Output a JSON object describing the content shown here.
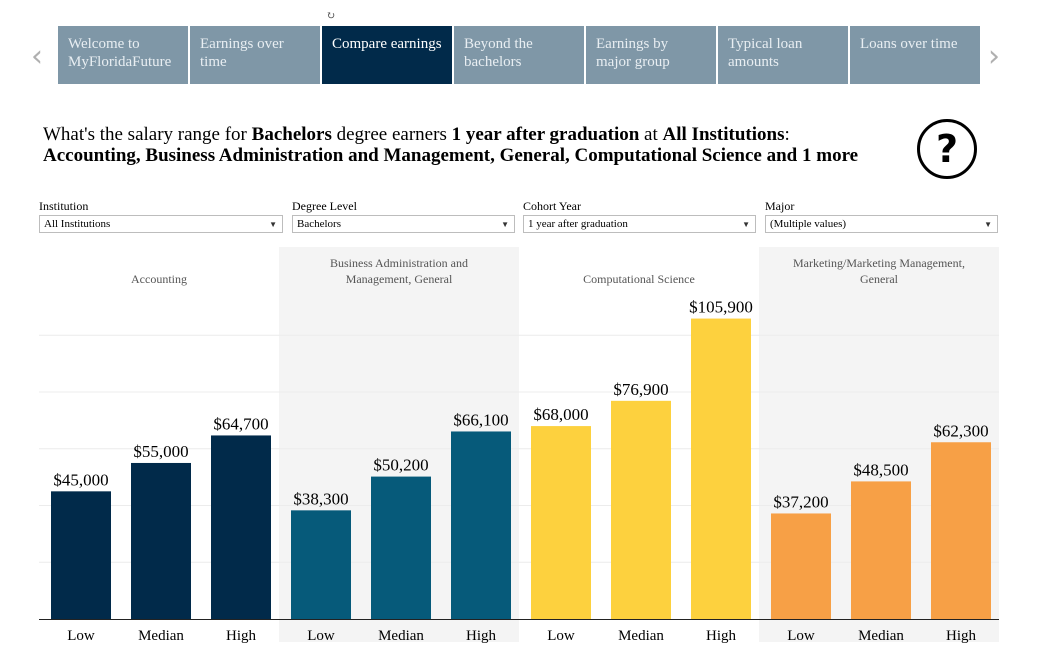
{
  "tabs": [
    {
      "label": "Welcome to MyFloridaFuture",
      "active": false
    },
    {
      "label": "Earnings over time",
      "active": false
    },
    {
      "label": "Compare earnings",
      "active": true
    },
    {
      "label": "Beyond the bachelors",
      "active": false
    },
    {
      "label": "Earnings by major group",
      "active": false
    },
    {
      "label": "Typical loan amounts",
      "active": false
    },
    {
      "label": "Loans over time",
      "active": false
    }
  ],
  "icons": {
    "prev": "chevron-left-icon",
    "next": "chevron-right-icon",
    "help": "question-circle-icon",
    "loading": "loading-spinner-icon"
  },
  "headline": {
    "p1": "What's the salary range for ",
    "degree": "Bachelors",
    "p2": " degree earners ",
    "cohort": "1 year after graduation",
    "p3": " at ",
    "institution": "All Institutions",
    "p4": ":",
    "majors": "Accounting, Business Administration and Management, General, Computational Science and 1 more"
  },
  "filters": {
    "institution": {
      "label": "Institution",
      "value": "All Institutions"
    },
    "degree": {
      "label": "Degree Level",
      "value": "Bachelors"
    },
    "cohort": {
      "label": "Cohort Year",
      "value": "1 year after graduation"
    },
    "major": {
      "label": "Major",
      "value": "(Multiple values)"
    }
  },
  "chart_data": {
    "type": "bar",
    "categories": [
      "Low",
      "Median",
      "High"
    ],
    "ylim": [
      0,
      110000
    ],
    "grid": true,
    "series": [
      {
        "name": "Accounting",
        "color": "#012a4a",
        "values": [
          45000,
          55000,
          64700
        ],
        "labels": [
          "$45,000",
          "$55,000",
          "$64,700"
        ]
      },
      {
        "name": "Business Administration and Management, General",
        "color": "#065a7a",
        "values": [
          38300,
          50200,
          66100
        ],
        "labels": [
          "$38,300",
          "$50,200",
          "$66,100"
        ]
      },
      {
        "name": "Computational Science",
        "color": "#fdd13e",
        "values": [
          68000,
          76900,
          105900
        ],
        "labels": [
          "$68,000",
          "$76,900",
          "$105,900"
        ]
      },
      {
        "name": "Marketing/Marketing Management, General",
        "color": "#f7a046",
        "values": [
          37200,
          48500,
          62300
        ],
        "labels": [
          "$37,200",
          "$48,500",
          "$62,300"
        ]
      }
    ]
  }
}
